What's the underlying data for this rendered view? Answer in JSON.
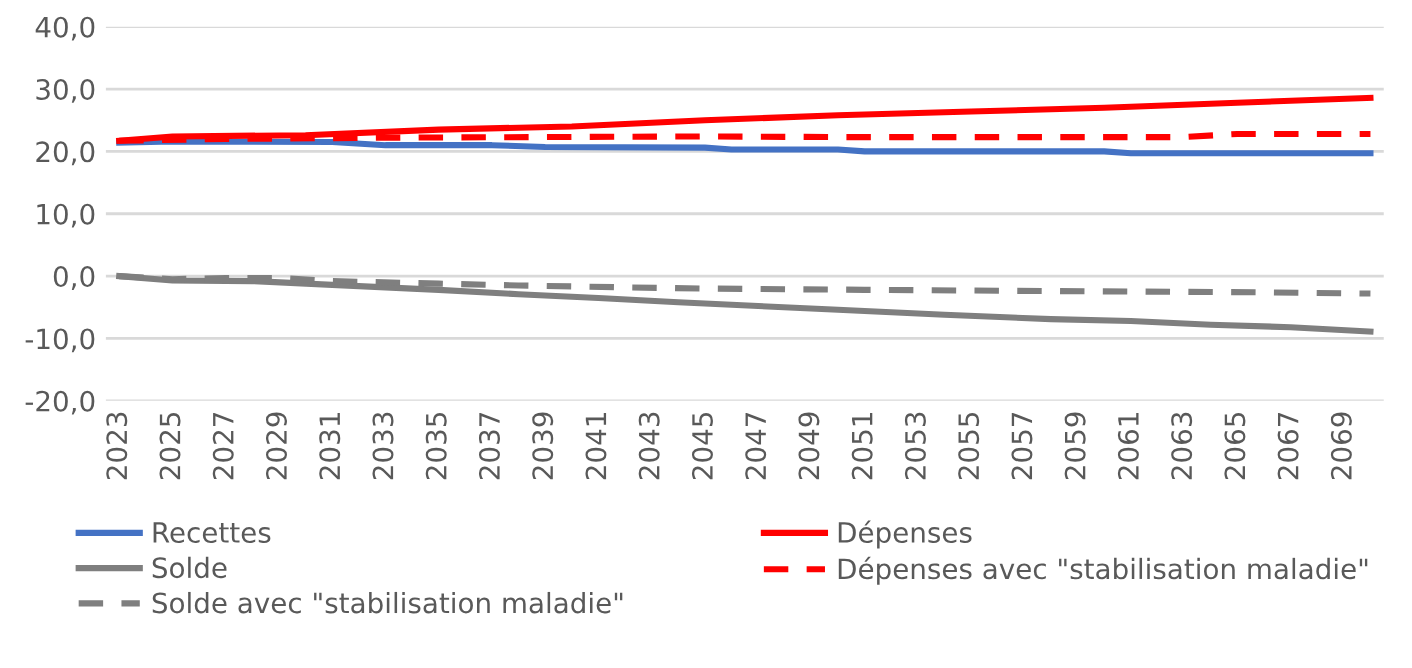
{
  "chart_data": {
    "type": "line",
    "xlim": [
      2022.5,
      2070.5
    ],
    "xticks": [
      2023,
      2025,
      2027,
      2029,
      2031,
      2033,
      2035,
      2037,
      2039,
      2041,
      2043,
      2045,
      2047,
      2049,
      2051,
      2053,
      2055,
      2057,
      2059,
      2061,
      2063,
      2065,
      2067,
      2069
    ],
    "ylim": [
      -20,
      40
    ],
    "yticks": [
      {
        "value": -20,
        "label": "-20,0"
      },
      {
        "value": -10,
        "label": "-10,0"
      },
      {
        "value": 0,
        "label": "0,0"
      },
      {
        "value": 10,
        "label": "10,0"
      },
      {
        "value": 20,
        "label": "20,0"
      },
      {
        "value": 30,
        "label": "30,0"
      },
      {
        "value": 40,
        "label": "40,0"
      }
    ],
    "grid": "y",
    "legend": "bottom",
    "marker": "none",
    "series": [
      {
        "name": "Recettes",
        "color": "#4472c4",
        "line_style": "solid",
        "x": [
          2023,
          2025,
          2031,
          2033,
          2037,
          2039,
          2045,
          2046,
          2050,
          2051,
          2060,
          2061,
          2070
        ],
        "values": [
          21.4,
          21.6,
          21.5,
          21.0,
          21.0,
          20.7,
          20.6,
          20.3,
          20.3,
          20.0,
          20.0,
          19.7,
          19.7
        ]
      },
      {
        "name": "Dépenses",
        "color": "#ff0000",
        "line_style": "solid",
        "x": [
          2023,
          2025,
          2030,
          2035,
          2040,
          2045,
          2050,
          2055,
          2060,
          2065,
          2070
        ],
        "values": [
          21.7,
          22.4,
          22.6,
          23.5,
          24.0,
          25.0,
          25.8,
          26.4,
          27.0,
          27.8,
          28.6
        ]
      },
      {
        "name": "Solde",
        "color": "#7f7f7f",
        "line_style": "solid",
        "x": [
          2023,
          2025,
          2028,
          2031,
          2035,
          2038,
          2041,
          2044,
          2047,
          2050,
          2054,
          2058,
          2061,
          2064,
          2067,
          2070
        ],
        "values": [
          0.0,
          -0.7,
          -0.8,
          -1.4,
          -2.2,
          -2.9,
          -3.5,
          -4.2,
          -4.8,
          -5.4,
          -6.2,
          -6.9,
          -7.2,
          -7.8,
          -8.2,
          -8.9
        ]
      },
      {
        "name": "Dépenses avec \"stabilisation maladie\"",
        "color": "#ff0000",
        "line_style": "dashed",
        "x": [
          2023,
          2027,
          2033,
          2045,
          2050,
          2063,
          2065,
          2070
        ],
        "values": [
          21.7,
          22.0,
          22.2,
          22.4,
          22.3,
          22.3,
          22.8,
          22.8
        ]
      },
      {
        "name": "Solde avec \"stabilisation maladie\"",
        "color": "#7f7f7f",
        "line_style": "dashed",
        "x": [
          2023,
          2025,
          2027,
          2029,
          2031,
          2035,
          2038,
          2042,
          2045,
          2051,
          2058,
          2066,
          2070
        ],
        "values": [
          0.0,
          -0.5,
          -0.3,
          -0.3,
          -0.8,
          -1.2,
          -1.5,
          -1.8,
          -2.0,
          -2.2,
          -2.4,
          -2.6,
          -2.8
        ]
      }
    ]
  }
}
